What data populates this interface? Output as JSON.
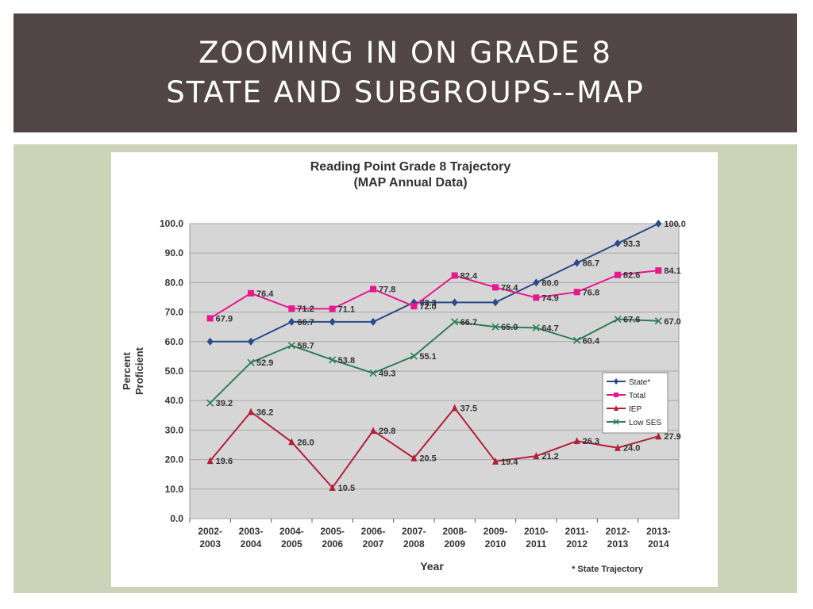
{
  "slide": {
    "title_line1": "ZOOMING IN ON GRADE 8",
    "title_line2": "STATE AND SUBGROUPS--MAP",
    "header_bg": "#514645",
    "content_bg": "#cdd3b9"
  },
  "chart_data": {
    "type": "line",
    "title": "Reading Point Grade 8 Trajectory",
    "subtitle": "(MAP Annual Data)",
    "xlabel": "Year",
    "ylabel_line1": "Percent",
    "ylabel_line2": "Proficient",
    "footnote": "* State Trajectory",
    "ylim": [
      0,
      100
    ],
    "yticks": [
      "100.0",
      "90.0",
      "80.0",
      "70.0",
      "60.0",
      "50.0",
      "40.0",
      "30.0",
      "20.0",
      "10.0",
      "0.0"
    ],
    "categories": [
      [
        "2002-",
        "2003"
      ],
      [
        "2003-",
        "2004"
      ],
      [
        "2004-",
        "2005"
      ],
      [
        "2005-",
        "2006"
      ],
      [
        "2006-",
        "2007"
      ],
      [
        "2007-",
        "2008"
      ],
      [
        "2008-",
        "2009"
      ],
      [
        "2009-",
        "2010"
      ],
      [
        "2010-",
        "2011"
      ],
      [
        "2011-",
        "2012"
      ],
      [
        "2012-",
        "2013"
      ],
      [
        "2013-",
        "2014"
      ]
    ],
    "grid": true,
    "legend_position": "right",
    "plot_bg": "#d6d6d6",
    "series": [
      {
        "name": "State*",
        "color": "#2b4a8b",
        "marker": "diamond",
        "values": [
          60,
          60,
          66.7,
          66.7,
          66.7,
          73.3,
          73.3,
          73.3,
          80.0,
          86.7,
          93.3,
          100.0
        ],
        "labels": [
          "",
          "",
          "66.7",
          "",
          "",
          "73.3",
          "",
          "",
          "80.0",
          "86.7",
          "93.3",
          "100.0"
        ]
      },
      {
        "name": "Total",
        "color": "#e6198c",
        "marker": "square",
        "values": [
          67.9,
          76.4,
          71.2,
          71.1,
          77.8,
          72.0,
          82.4,
          78.4,
          74.9,
          76.8,
          82.6,
          84.1
        ],
        "labels": [
          "67.9",
          "76.4",
          "71.2",
          "71.1",
          "77.8",
          "72.0",
          "82.4",
          "78.4",
          "74.9",
          "76.8",
          "82.6",
          "84.1"
        ]
      },
      {
        "name": "IEP",
        "color": "#b3203a",
        "marker": "triangle",
        "values": [
          19.6,
          36.2,
          26.0,
          10.5,
          29.8,
          20.5,
          37.5,
          19.4,
          21.2,
          26.3,
          24.0,
          27.9
        ],
        "labels": [
          "19.6",
          "36.2",
          "26.0",
          "10.5",
          "29.8",
          "20.5",
          "37.5",
          "19.4",
          "21.2",
          "26.3",
          "24.0",
          "27.9"
        ]
      },
      {
        "name": "Low SES",
        "color": "#2e7d58",
        "marker": "x",
        "values": [
          39.2,
          52.9,
          58.7,
          53.8,
          49.3,
          55.1,
          66.7,
          65.0,
          64.7,
          60.4,
          67.6,
          67.0
        ],
        "labels": [
          "39.2",
          "52.9",
          "58.7",
          "53.8",
          "49.3",
          "55.1",
          "66.7",
          "65.0",
          "64.7",
          "60.4",
          "67.6",
          "67.0"
        ]
      }
    ]
  }
}
